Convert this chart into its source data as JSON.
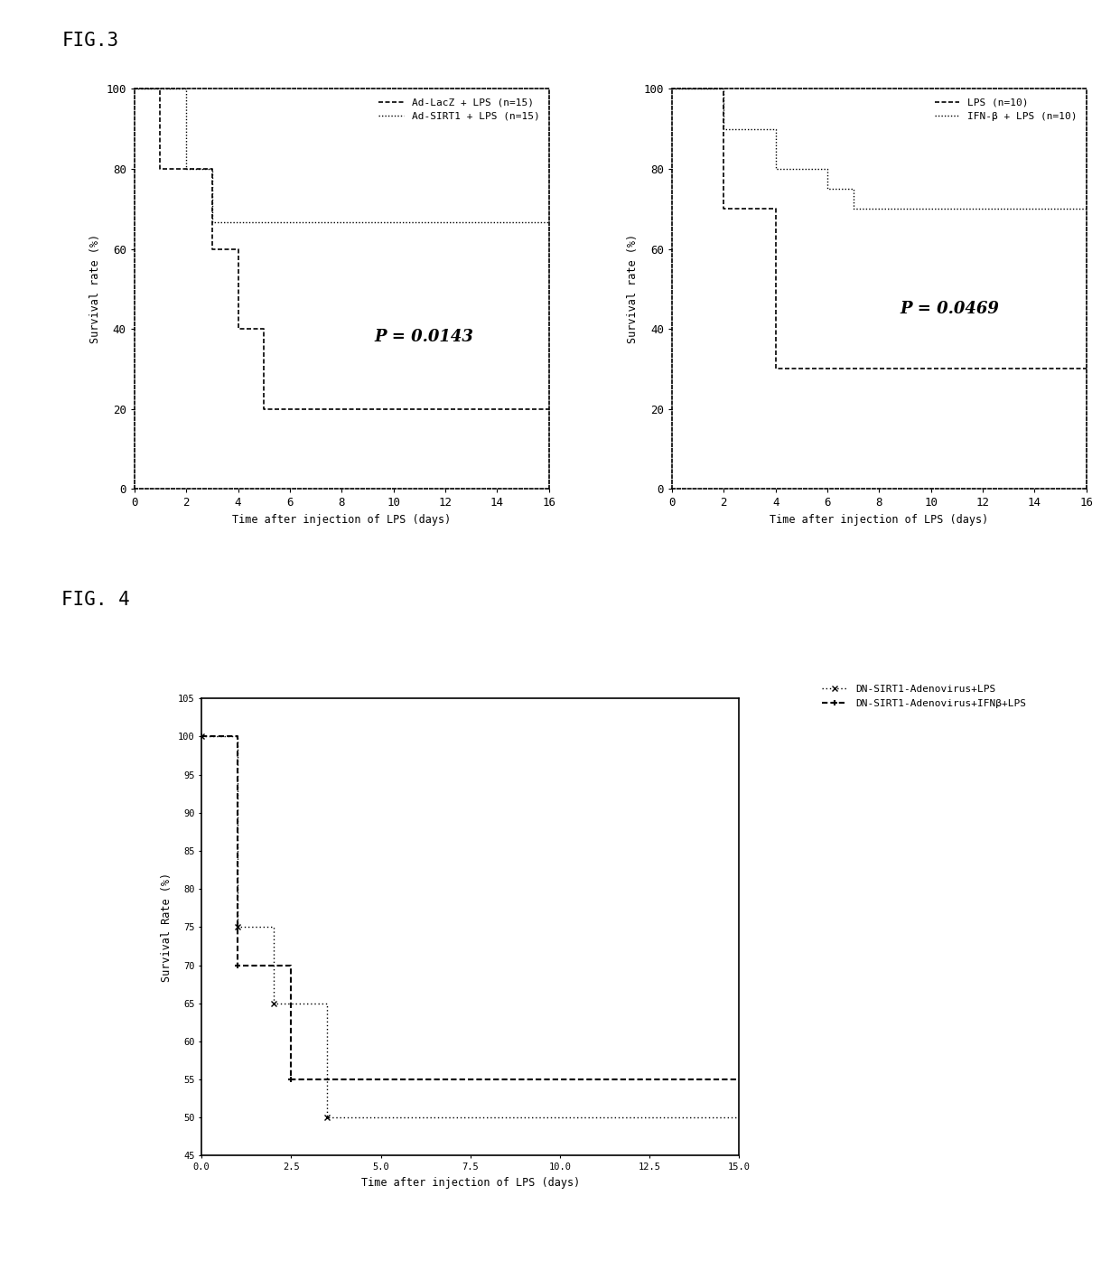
{
  "fig3_title": "FIG.3",
  "fig4_title": "FIG. 4",
  "plot1": {
    "legend1_label": "Ad-LacZ + LPS (n=15)",
    "legend2_label": "Ad-SIRT1 + LPS (n=15)",
    "pvalue": "P = 0.0143",
    "xlabel": "Time after injection of LPS (days)",
    "ylabel": "Survival rate (%)",
    "xlim": [
      0,
      16
    ],
    "ylim": [
      0,
      100
    ],
    "xticks": [
      0,
      2,
      4,
      6,
      8,
      10,
      12,
      14,
      16
    ],
    "yticks": [
      0,
      20,
      40,
      60,
      80,
      100
    ],
    "line1_x": [
      0,
      1,
      1,
      3,
      3,
      4,
      4,
      5,
      5,
      16
    ],
    "line1_y": [
      100,
      100,
      80,
      80,
      60,
      60,
      40,
      40,
      20,
      20
    ],
    "line2_x": [
      0,
      2,
      2,
      3,
      3,
      16
    ],
    "line2_y": [
      100,
      100,
      80,
      80,
      66.7,
      66.7
    ]
  },
  "plot2": {
    "legend1_label": "LPS (n=10)",
    "legend2_label": "IFN-β + LPS (n=10)",
    "pvalue": "P = 0.0469",
    "xlabel": "Time after injection of LPS (days)",
    "ylabel": "Survival rate (%)",
    "xlim": [
      0,
      16
    ],
    "ylim": [
      0,
      100
    ],
    "xticks": [
      0,
      2,
      4,
      6,
      8,
      10,
      12,
      14,
      16
    ],
    "yticks": [
      0,
      20,
      40,
      60,
      80,
      100
    ],
    "line1_x": [
      0,
      2,
      2,
      4,
      4,
      16
    ],
    "line1_y": [
      100,
      100,
      70,
      70,
      30,
      30
    ],
    "line2_x": [
      0,
      2,
      2,
      4,
      4,
      6,
      6,
      7,
      7,
      16
    ],
    "line2_y": [
      100,
      100,
      90,
      90,
      80,
      80,
      75,
      75,
      70,
      70
    ]
  },
  "plot3": {
    "legend1_label": "DN-SIRT1-Adenovirus+LPS",
    "legend2_label": "DN-SIRT1-Adenovirus+IFNβ+LPS",
    "xlabel": "Time after injection of LPS (days)",
    "ylabel": "Survival Rate (%)",
    "xlim": [
      0,
      15.0
    ],
    "ylim": [
      45,
      105
    ],
    "xticks": [
      0.0,
      2.5,
      5.0,
      7.5,
      10.0,
      12.5,
      15.0
    ],
    "ytick_vals": [
      45,
      50,
      55,
      60,
      65,
      70,
      75,
      80,
      85,
      90,
      95,
      100,
      105
    ],
    "ytick_labels": [
      "45",
      "50",
      "55",
      "60",
      "65",
      "70",
      "75",
      "80",
      "85",
      "90",
      "95",
      "100",
      "105"
    ],
    "line1_x": [
      0,
      1,
      1,
      2,
      2,
      3.5,
      3.5,
      15
    ],
    "line1_y": [
      100,
      100,
      75,
      75,
      65,
      65,
      50,
      50
    ],
    "line2_x": [
      0,
      1,
      1,
      2.5,
      2.5,
      15
    ],
    "line2_y": [
      100,
      100,
      70,
      70,
      55,
      55
    ]
  }
}
